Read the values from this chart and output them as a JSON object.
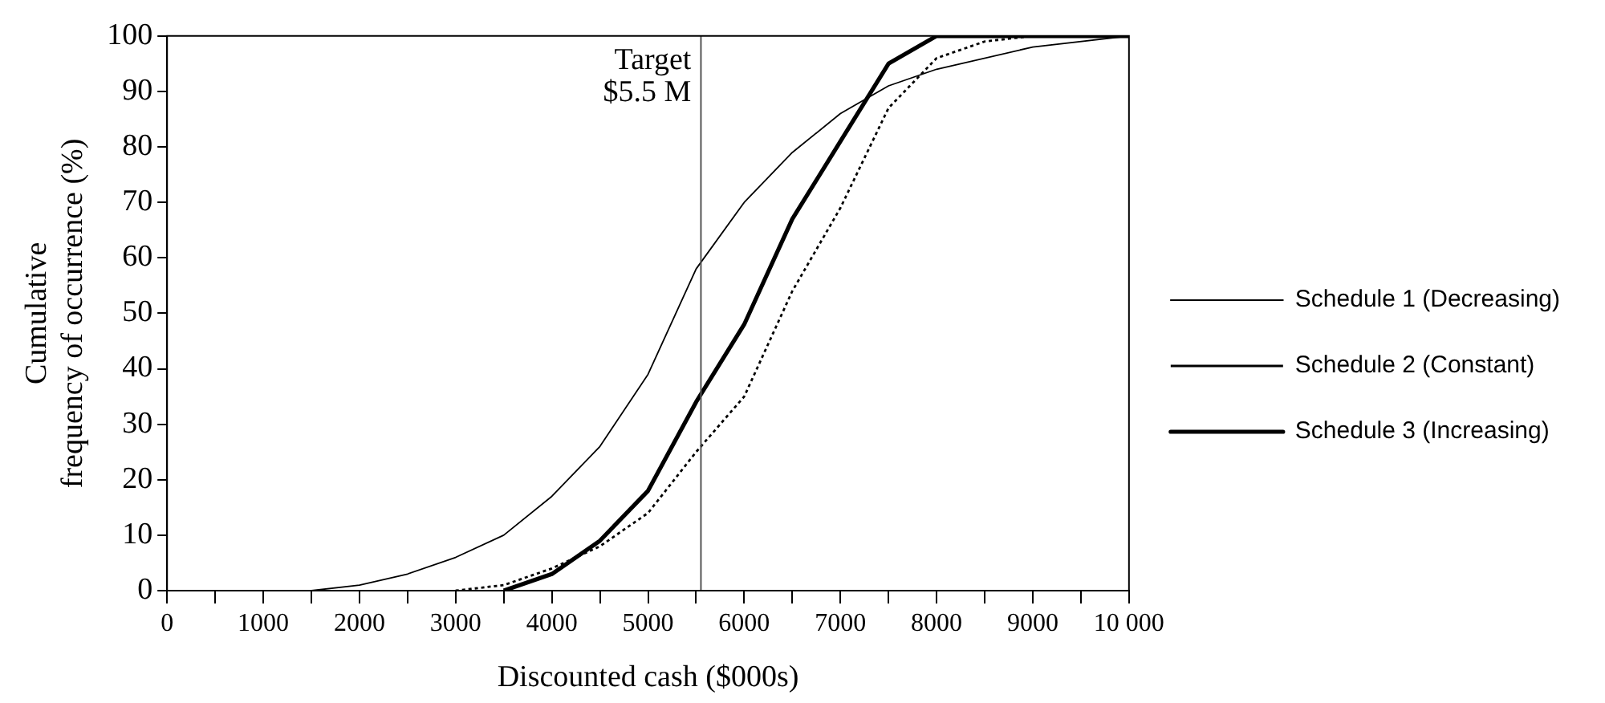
{
  "chart_data": {
    "type": "line",
    "xlabel": "Discounted cash ($000s)",
    "ylabel": "Cumulative\nfrequency of occurrence (%)",
    "xlim": [
      0,
      10000
    ],
    "ylim": [
      0,
      100
    ],
    "xticks": [
      0,
      {
        "value": 500,
        "label": null
      },
      1000,
      {
        "value": 1500,
        "label": null
      },
      2000,
      {
        "value": 2500,
        "label": null
      },
      3000,
      {
        "value": 3500,
        "label": null
      },
      4000,
      {
        "value": 4500,
        "label": null
      },
      5000,
      {
        "value": 5500,
        "label": null
      },
      6000,
      {
        "value": 6500,
        "label": null
      },
      7000,
      {
        "value": 7500,
        "label": null
      },
      8000,
      {
        "value": 8500,
        "label": null
      },
      9000,
      {
        "value": 9500,
        "label": null
      },
      {
        "value": 10000,
        "label": "10 000"
      }
    ],
    "yticks": [
      0,
      10,
      20,
      30,
      40,
      50,
      60,
      70,
      80,
      90,
      100
    ],
    "grid": false,
    "legend": "right",
    "marker": "none",
    "ref_lines": [
      {
        "axis": "x",
        "value": 5550,
        "label": "Target\n$5.5 M",
        "color": "#555555"
      }
    ],
    "series": [
      {
        "name": "Schedule 1 (Decreasing)",
        "color": "#000000",
        "line_style": "solid",
        "x": [
          0,
          1500,
          2000,
          2500,
          3000,
          3500,
          4000,
          4500,
          5000,
          5500,
          6000,
          6500,
          7000,
          7500,
          8000,
          9000,
          10000
        ],
        "values": [
          0,
          0,
          1,
          3,
          6,
          10,
          17,
          26,
          39,
          58,
          70,
          79,
          86,
          91,
          94,
          98,
          100
        ]
      },
      {
        "name": "Schedule 2 (Constant)",
        "color": "#000000",
        "line_style": "dotted",
        "x": [
          3000,
          3500,
          4000,
          4500,
          5000,
          5500,
          6000,
          6500,
          7000,
          7500,
          8000,
          8500,
          9000,
          10000
        ],
        "values": [
          0,
          1,
          4,
          8,
          14,
          25,
          35,
          54,
          69,
          87,
          96,
          99,
          100,
          100
        ]
      },
      {
        "name": "Schedule 3 (Increasing)",
        "color": "#000000",
        "line_style": "solid",
        "x": [
          3500,
          4000,
          4500,
          5000,
          5500,
          6000,
          6500,
          7000,
          7500,
          8000,
          10000
        ],
        "values": [
          0,
          3,
          9,
          18,
          34,
          48,
          67,
          81,
          95,
          100,
          100
        ]
      }
    ]
  }
}
